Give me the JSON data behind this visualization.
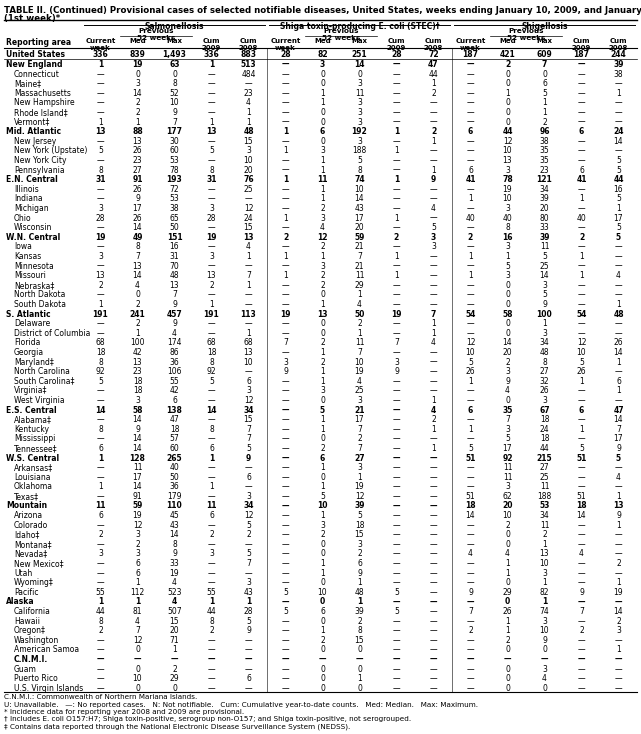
{
  "title": "TABLE II. (Continued) Provisional cases of selected notifiable diseases, United States, weeks ending January 10, 2009, and January 5, 2008",
  "title2": "(1st week)*",
  "col_groups": [
    "Salmonellosis",
    "Shiga toxin-producing E. coli (STEC)†",
    "Shigellosis"
  ],
  "sub_headers": [
    "Current\nweek",
    "Med",
    "Max",
    "Cum\n2009",
    "Cum\n2008"
  ],
  "previous_label": "Previous\n52 weeks",
  "reporting_area_label": "Reporting area",
  "footnotes": [
    "C.N.M.I.: Commonwealth of Northern Mariana Islands.",
    "U: Unavailable.   —: No reported cases.   N: Not notifiable.   Cum: Cumulative year-to-date counts.   Med: Median.   Max: Maximum.",
    "* Incidence data for reporting year 2008 and 2009 are provisional.",
    "† Includes E. coli O157:H7; Shiga toxin-positive, serogroup non-O157; and Shiga toxin-positive, not serogrouped.",
    "‡ Contains data reported through the National Electronic Disease Surveillance System (NEDSS)."
  ],
  "rows": [
    [
      "United States",
      "336",
      "839",
      "1,493",
      "336",
      "883",
      "28",
      "82",
      "251",
      "28",
      "72",
      "187",
      "421",
      "609",
      "187",
      "244"
    ],
    [
      "New England",
      "1",
      "19",
      "63",
      "1",
      "513",
      "—",
      "3",
      "14",
      "—",
      "47",
      "—",
      "2",
      "7",
      "—",
      "39"
    ],
    [
      "Connecticut",
      "—",
      "0",
      "0",
      "—",
      "484",
      "—",
      "0",
      "0",
      "—",
      "44",
      "—",
      "0",
      "0",
      "—",
      "38"
    ],
    [
      "Maine‡",
      "—",
      "3",
      "8",
      "—",
      "—",
      "—",
      "0",
      "3",
      "—",
      "1",
      "—",
      "0",
      "6",
      "—",
      "—"
    ],
    [
      "Massachusetts",
      "—",
      "14",
      "52",
      "—",
      "23",
      "—",
      "1",
      "11",
      "—",
      "2",
      "—",
      "1",
      "5",
      "—",
      "1"
    ],
    [
      "New Hampshire",
      "—",
      "2",
      "10",
      "—",
      "4",
      "—",
      "1",
      "3",
      "—",
      "—",
      "—",
      "0",
      "1",
      "—",
      "—"
    ],
    [
      "Rhode Island‡",
      "—",
      "2",
      "9",
      "—",
      "1",
      "—",
      "0",
      "3",
      "—",
      "—",
      "—",
      "0",
      "1",
      "—",
      "—"
    ],
    [
      "Vermont‡",
      "1",
      "1",
      "7",
      "1",
      "1",
      "—",
      "0",
      "3",
      "—",
      "—",
      "—",
      "0",
      "2",
      "—",
      "—"
    ],
    [
      "Mid. Atlantic",
      "13",
      "88",
      "177",
      "13",
      "48",
      "1",
      "6",
      "192",
      "1",
      "2",
      "6",
      "44",
      "96",
      "6",
      "24"
    ],
    [
      "New Jersey",
      "—",
      "13",
      "30",
      "—",
      "15",
      "—",
      "0",
      "3",
      "—",
      "1",
      "—",
      "12",
      "38",
      "—",
      "14"
    ],
    [
      "New York (Upstate)",
      "5",
      "26",
      "60",
      "5",
      "3",
      "1",
      "3",
      "188",
      "1",
      "—",
      "—",
      "10",
      "35",
      "—",
      "—"
    ],
    [
      "New York City",
      "—",
      "23",
      "53",
      "—",
      "10",
      "—",
      "1",
      "5",
      "—",
      "—",
      "—",
      "13",
      "35",
      "—",
      "5"
    ],
    [
      "Pennsylvania",
      "8",
      "27",
      "78",
      "8",
      "20",
      "—",
      "1",
      "8",
      "—",
      "1",
      "6",
      "3",
      "23",
      "6",
      "5"
    ],
    [
      "E.N. Central",
      "31",
      "91",
      "193",
      "31",
      "76",
      "1",
      "11",
      "74",
      "1",
      "9",
      "41",
      "78",
      "121",
      "41",
      "44"
    ],
    [
      "Illinois",
      "—",
      "26",
      "72",
      "—",
      "25",
      "—",
      "1",
      "10",
      "—",
      "—",
      "—",
      "19",
      "34",
      "—",
      "16"
    ],
    [
      "Indiana",
      "—",
      "9",
      "53",
      "—",
      "—",
      "—",
      "1",
      "14",
      "—",
      "—",
      "1",
      "10",
      "39",
      "1",
      "5"
    ],
    [
      "Michigan",
      "3",
      "17",
      "38",
      "3",
      "12",
      "—",
      "2",
      "43",
      "—",
      "4",
      "—",
      "3",
      "20",
      "—",
      "1"
    ],
    [
      "Ohio",
      "28",
      "26",
      "65",
      "28",
      "24",
      "1",
      "3",
      "17",
      "1",
      "—",
      "40",
      "40",
      "80",
      "40",
      "17"
    ],
    [
      "Wisconsin",
      "—",
      "14",
      "50",
      "—",
      "15",
      "—",
      "4",
      "20",
      "—",
      "5",
      "—",
      "8",
      "33",
      "—",
      "5"
    ],
    [
      "W.N. Central",
      "19",
      "49",
      "151",
      "19",
      "13",
      "2",
      "12",
      "59",
      "2",
      "3",
      "2",
      "16",
      "39",
      "2",
      "5"
    ],
    [
      "Iowa",
      "—",
      "8",
      "16",
      "—",
      "4",
      "—",
      "2",
      "21",
      "—",
      "3",
      "—",
      "3",
      "11",
      "—",
      "—"
    ],
    [
      "Kansas",
      "3",
      "7",
      "31",
      "3",
      "1",
      "1",
      "1",
      "7",
      "1",
      "—",
      "1",
      "1",
      "5",
      "1",
      "—"
    ],
    [
      "Minnesota",
      "—",
      "13",
      "70",
      "—",
      "—",
      "—",
      "3",
      "21",
      "—",
      "—",
      "—",
      "5",
      "25",
      "—",
      "—"
    ],
    [
      "Missouri",
      "13",
      "14",
      "48",
      "13",
      "7",
      "1",
      "2",
      "11",
      "1",
      "—",
      "1",
      "3",
      "14",
      "1",
      "4"
    ],
    [
      "Nebraska‡",
      "2",
      "4",
      "13",
      "2",
      "1",
      "—",
      "2",
      "29",
      "—",
      "—",
      "—",
      "0",
      "3",
      "—",
      "—"
    ],
    [
      "North Dakota",
      "—",
      "0",
      "7",
      "—",
      "—",
      "—",
      "0",
      "1",
      "—",
      "—",
      "—",
      "0",
      "5",
      "—",
      "—"
    ],
    [
      "South Dakota",
      "1",
      "2",
      "9",
      "1",
      "—",
      "—",
      "1",
      "4",
      "—",
      "—",
      "—",
      "0",
      "9",
      "—",
      "1"
    ],
    [
      "S. Atlantic",
      "191",
      "241",
      "457",
      "191",
      "113",
      "19",
      "13",
      "50",
      "19",
      "7",
      "54",
      "58",
      "100",
      "54",
      "48"
    ],
    [
      "Delaware",
      "—",
      "2",
      "9",
      "—",
      "—",
      "—",
      "0",
      "2",
      "—",
      "1",
      "—",
      "0",
      "1",
      "—",
      "—"
    ],
    [
      "District of Columbia",
      "—",
      "1",
      "4",
      "—",
      "1",
      "—",
      "0",
      "1",
      "—",
      "1",
      "—",
      "0",
      "3",
      "—",
      "—"
    ],
    [
      "Florida",
      "68",
      "100",
      "174",
      "68",
      "68",
      "7",
      "2",
      "11",
      "7",
      "4",
      "12",
      "14",
      "34",
      "12",
      "26"
    ],
    [
      "Georgia",
      "18",
      "42",
      "86",
      "18",
      "13",
      "—",
      "1",
      "7",
      "—",
      "—",
      "10",
      "20",
      "48",
      "10",
      "14"
    ],
    [
      "Maryland‡",
      "8",
      "13",
      "36",
      "8",
      "10",
      "3",
      "2",
      "10",
      "3",
      "—",
      "5",
      "2",
      "8",
      "5",
      "1"
    ],
    [
      "North Carolina",
      "92",
      "23",
      "106",
      "92",
      "—",
      "9",
      "1",
      "19",
      "9",
      "—",
      "26",
      "3",
      "27",
      "26",
      "—"
    ],
    [
      "South Carolina‡",
      "5",
      "18",
      "55",
      "5",
      "6",
      "—",
      "1",
      "4",
      "—",
      "—",
      "1",
      "9",
      "32",
      "1",
      "6"
    ],
    [
      "Virginia‡",
      "—",
      "18",
      "42",
      "—",
      "3",
      "—",
      "3",
      "25",
      "—",
      "—",
      "—",
      "4",
      "26",
      "—",
      "1"
    ],
    [
      "West Virginia",
      "—",
      "3",
      "6",
      "—",
      "12",
      "—",
      "0",
      "3",
      "—",
      "1",
      "—",
      "0",
      "3",
      "—",
      "—"
    ],
    [
      "E.S. Central",
      "14",
      "58",
      "138",
      "14",
      "34",
      "—",
      "5",
      "21",
      "—",
      "4",
      "6",
      "35",
      "67",
      "6",
      "47"
    ],
    [
      "Alabama‡",
      "—",
      "14",
      "47",
      "—",
      "15",
      "—",
      "1",
      "17",
      "—",
      "2",
      "—",
      "7",
      "18",
      "—",
      "14"
    ],
    [
      "Kentucky",
      "8",
      "9",
      "18",
      "8",
      "7",
      "—",
      "1",
      "7",
      "—",
      "1",
      "1",
      "3",
      "24",
      "1",
      "7"
    ],
    [
      "Mississippi",
      "—",
      "14",
      "57",
      "—",
      "7",
      "—",
      "0",
      "2",
      "—",
      "—",
      "—",
      "5",
      "18",
      "—",
      "17"
    ],
    [
      "Tennessee‡",
      "6",
      "14",
      "60",
      "6",
      "5",
      "—",
      "2",
      "7",
      "—",
      "1",
      "5",
      "17",
      "44",
      "5",
      "9"
    ],
    [
      "W.S. Central",
      "1",
      "128",
      "265",
      "1",
      "9",
      "—",
      "6",
      "27",
      "—",
      "—",
      "51",
      "92",
      "215",
      "51",
      "5"
    ],
    [
      "Arkansas‡",
      "—",
      "11",
      "40",
      "—",
      "—",
      "—",
      "1",
      "3",
      "—",
      "—",
      "—",
      "11",
      "27",
      "—",
      "—"
    ],
    [
      "Louisiana",
      "—",
      "17",
      "50",
      "—",
      "6",
      "—",
      "0",
      "1",
      "—",
      "—",
      "—",
      "11",
      "25",
      "—",
      "4"
    ],
    [
      "Oklahoma",
      "1",
      "14",
      "36",
      "1",
      "—",
      "—",
      "1",
      "19",
      "—",
      "—",
      "—",
      "3",
      "11",
      "—",
      "—"
    ],
    [
      "Texas‡",
      "—",
      "91",
      "179",
      "—",
      "3",
      "—",
      "5",
      "12",
      "—",
      "—",
      "51",
      "62",
      "188",
      "51",
      "1"
    ],
    [
      "Mountain",
      "11",
      "59",
      "110",
      "11",
      "34",
      "—",
      "10",
      "39",
      "—",
      "—",
      "18",
      "20",
      "53",
      "18",
      "13"
    ],
    [
      "Arizona",
      "6",
      "19",
      "45",
      "6",
      "12",
      "—",
      "1",
      "5",
      "—",
      "—",
      "14",
      "10",
      "34",
      "14",
      "9"
    ],
    [
      "Colorado",
      "—",
      "12",
      "43",
      "—",
      "5",
      "—",
      "3",
      "18",
      "—",
      "—",
      "—",
      "2",
      "11",
      "—",
      "1"
    ],
    [
      "Idaho‡",
      "2",
      "3",
      "14",
      "2",
      "2",
      "—",
      "2",
      "15",
      "—",
      "—",
      "—",
      "0",
      "2",
      "—",
      "—"
    ],
    [
      "Montana‡",
      "—",
      "2",
      "8",
      "—",
      "—",
      "—",
      "0",
      "3",
      "—",
      "—",
      "—",
      "0",
      "1",
      "—",
      "—"
    ],
    [
      "Nevada‡",
      "3",
      "3",
      "9",
      "3",
      "5",
      "—",
      "0",
      "2",
      "—",
      "—",
      "4",
      "4",
      "13",
      "4",
      "—"
    ],
    [
      "New Mexico‡",
      "—",
      "6",
      "33",
      "—",
      "7",
      "—",
      "1",
      "6",
      "—",
      "—",
      "—",
      "1",
      "10",
      "—",
      "2"
    ],
    [
      "Utah",
      "—",
      "6",
      "19",
      "—",
      "—",
      "—",
      "1",
      "9",
      "—",
      "—",
      "—",
      "1",
      "3",
      "—",
      "—"
    ],
    [
      "Wyoming‡",
      "—",
      "1",
      "4",
      "—",
      "3",
      "—",
      "0",
      "1",
      "—",
      "—",
      "—",
      "0",
      "1",
      "—",
      "1"
    ],
    [
      "Pacific",
      "55",
      "112",
      "523",
      "55",
      "43",
      "5",
      "10",
      "48",
      "5",
      "—",
      "9",
      "29",
      "82",
      "9",
      "19"
    ],
    [
      "Alaska",
      "1",
      "1",
      "4",
      "1",
      "1",
      "—",
      "0",
      "1",
      "—",
      "—",
      "—",
      "0",
      "1",
      "—",
      "—"
    ],
    [
      "California",
      "44",
      "81",
      "507",
      "44",
      "28",
      "5",
      "6",
      "39",
      "5",
      "—",
      "7",
      "26",
      "74",
      "7",
      "14"
    ],
    [
      "Hawaii",
      "8",
      "4",
      "15",
      "8",
      "5",
      "—",
      "0",
      "2",
      "—",
      "—",
      "—",
      "1",
      "3",
      "—",
      "2"
    ],
    [
      "Oregon‡",
      "2",
      "7",
      "20",
      "2",
      "9",
      "—",
      "1",
      "8",
      "—",
      "—",
      "2",
      "1",
      "10",
      "2",
      "3"
    ],
    [
      "Washington",
      "—",
      "12",
      "71",
      "—",
      "—",
      "—",
      "2",
      "15",
      "—",
      "—",
      "—",
      "2",
      "9",
      "—",
      "—"
    ],
    [
      "American Samoa",
      "—",
      "0",
      "1",
      "—",
      "—",
      "—",
      "0",
      "0",
      "—",
      "—",
      "—",
      "0",
      "0",
      "—",
      "1"
    ],
    [
      "C.N.M.I.",
      "—",
      "—",
      "—",
      "—",
      "—",
      "—",
      "—",
      "—",
      "—",
      "—",
      "—",
      "—",
      "—",
      "—",
      "—"
    ],
    [
      "Guam",
      "—",
      "0",
      "2",
      "—",
      "—",
      "—",
      "0",
      "0",
      "—",
      "—",
      "—",
      "0",
      "3",
      "—",
      "—"
    ],
    [
      "Puerto Rico",
      "—",
      "10",
      "29",
      "—",
      "6",
      "—",
      "0",
      "1",
      "—",
      "—",
      "—",
      "0",
      "4",
      "—",
      "—"
    ],
    [
      "U.S. Virgin Islands",
      "—",
      "0",
      "0",
      "—",
      "—",
      "—",
      "0",
      "0",
      "—",
      "—",
      "—",
      "0",
      "0",
      "—",
      "—"
    ]
  ],
  "bold_rows": [
    0,
    1,
    8,
    13,
    19,
    27,
    37,
    42,
    47,
    57,
    63
  ],
  "indent_rows": [
    2,
    3,
    4,
    5,
    6,
    7,
    9,
    10,
    11,
    12,
    14,
    15,
    16,
    17,
    18,
    20,
    21,
    22,
    23,
    24,
    25,
    26,
    28,
    29,
    30,
    31,
    32,
    33,
    34,
    35,
    36,
    38,
    39,
    40,
    41,
    43,
    44,
    45,
    46,
    48,
    49,
    50,
    51,
    52,
    53,
    54,
    55,
    56,
    58,
    59,
    60,
    61,
    62,
    63,
    64,
    65,
    66,
    67,
    68,
    69,
    70
  ]
}
